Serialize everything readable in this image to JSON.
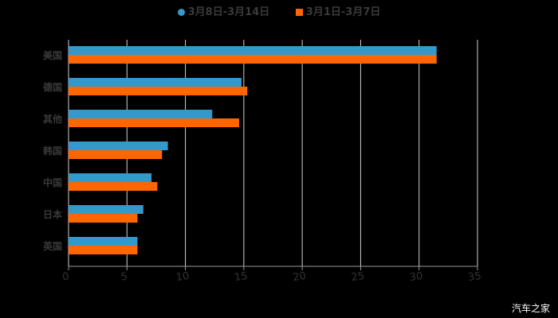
{
  "legend": [
    {
      "label": "3月8日-3月14日",
      "color": "#3399cc",
      "marker": "circle"
    },
    {
      "label": "3月1日-3月7日",
      "color": "#ff6600",
      "marker": "square"
    }
  ],
  "watermark": "汽车之家",
  "chart_data": {
    "type": "bar",
    "orientation": "horizontal",
    "title": "",
    "xlabel": "",
    "ylabel": "",
    "categories": [
      "美国",
      "德国",
      "其他",
      "韩国",
      "中国",
      "日本",
      "英国"
    ],
    "series": [
      {
        "name": "3月8日-3月14日",
        "color": "#3399cc",
        "values": [
          31.5,
          14.8,
          12.3,
          8.5,
          7.1,
          6.4,
          5.9
        ]
      },
      {
        "name": "3月1日-3月7日",
        "color": "#ff6600",
        "values": [
          31.5,
          15.3,
          14.6,
          8.0,
          7.6,
          5.9,
          5.9
        ]
      }
    ],
    "xlim": [
      0,
      35
    ],
    "xticks": [
      0,
      5,
      10,
      15,
      20,
      25,
      30,
      35
    ],
    "grid": true,
    "legend_position": "top"
  }
}
